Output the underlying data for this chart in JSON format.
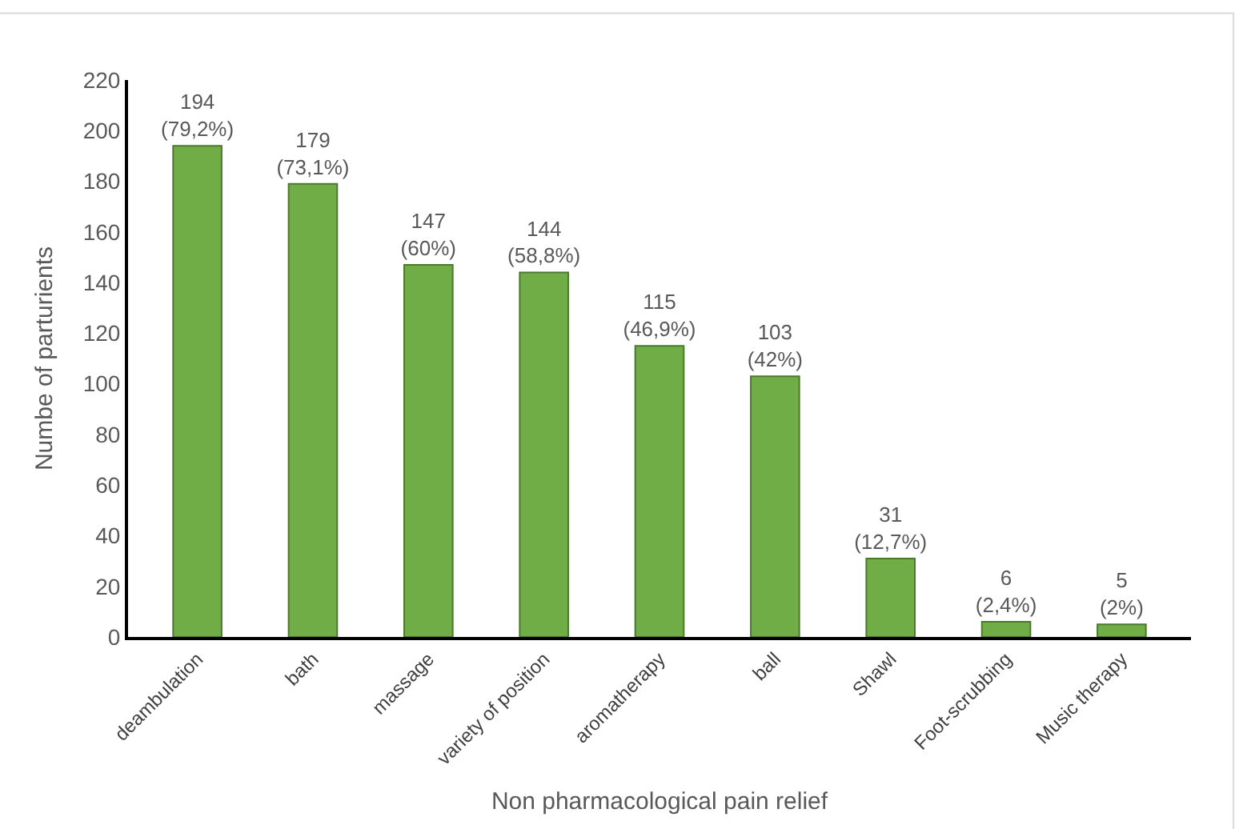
{
  "chart_data": {
    "type": "bar",
    "xlabel": "Non pharmacological pain relief",
    "ylabel": "Numbe of parturients",
    "categories": [
      "deambulation",
      "bath",
      "massage",
      "variety of position",
      "aromatherapy",
      "ball",
      "Shawl",
      "Foot-scrubbing",
      "Music therapy"
    ],
    "values": [
      194,
      179,
      147,
      144,
      115,
      103,
      31,
      6,
      5
    ],
    "value_labels": [
      "194\n(79,2%)",
      "179\n(73,1%)",
      "147\n(60%)",
      "144\n(58,8%)",
      "115\n(46,9%)",
      "103\n(42%)",
      "31\n(12,7%)",
      "6\n(2,4%)",
      "5\n(2%)"
    ],
    "color": "#70ad47",
    "ylim": [
      0,
      220
    ],
    "yticks": [
      0,
      20,
      40,
      60,
      80,
      100,
      120,
      140,
      160,
      180,
      200,
      220
    ]
  }
}
